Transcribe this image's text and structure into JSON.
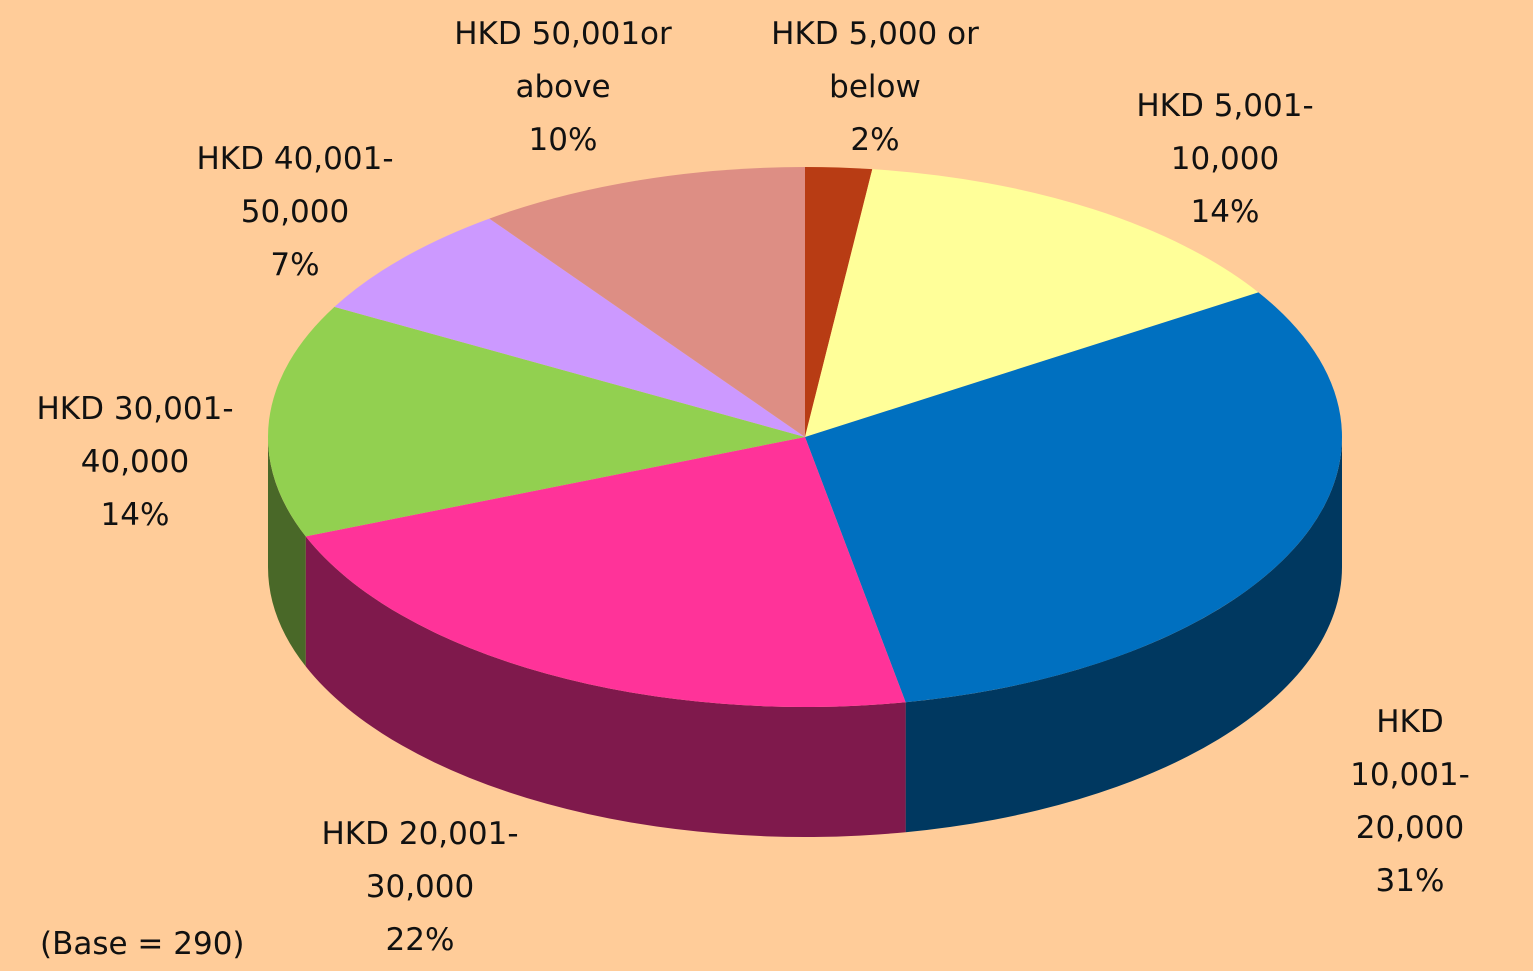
{
  "chart_data": {
    "type": "pie",
    "categories": [
      "HKD 5,000 or\nbelow",
      "HKD 5,001-\n10,000",
      "HKD 10,001-\n20,000",
      "HKD 20,001-\n30,000",
      "HKD 30,001-\n40,000",
      "HKD 40,001-\n50,000",
      "HKD 50,001or\nabove"
    ],
    "values": [
      2,
      14,
      31,
      22,
      14,
      7,
      10
    ],
    "value_labels": [
      "2%",
      "14%",
      "31%",
      "22%",
      "14%",
      "7%",
      "10%"
    ],
    "colors": [
      "#b83c14",
      "#ffff99",
      "#0070c0",
      "#ff3399",
      "#92d050",
      "#cc99ff",
      "#dd8e84"
    ],
    "annotation": "(Base = 290)"
  }
}
